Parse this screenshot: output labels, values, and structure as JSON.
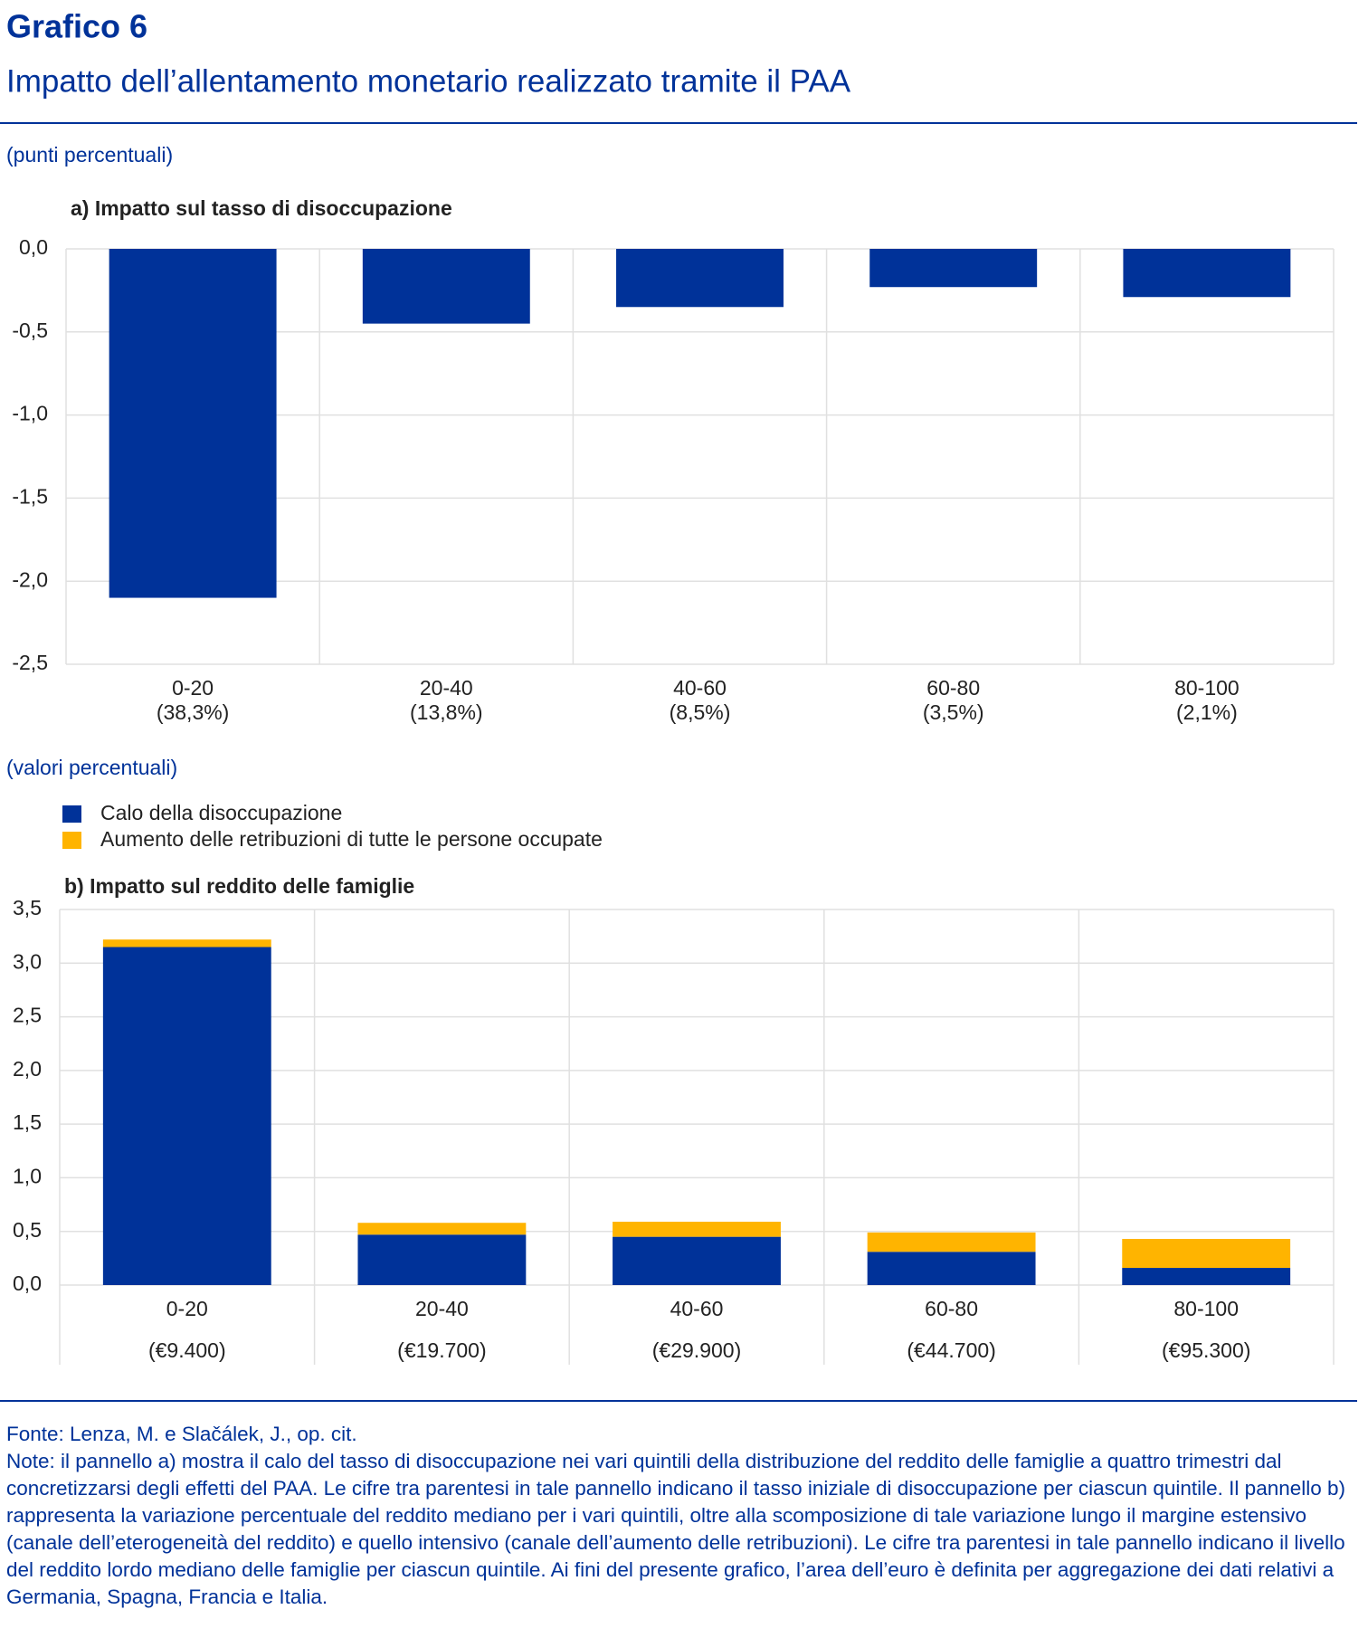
{
  "header": {
    "label": "Grafico 6",
    "title": "Impatto dell’allentamento monetario realizzato tramite il PAA"
  },
  "chart_data": [
    {
      "type": "bar",
      "unit": "(punti percentuali)",
      "title": "a) Impatto sul tasso di disoccupazione",
      "categories": [
        "0-20",
        "20-40",
        "40-60",
        "60-80",
        "80-100"
      ],
      "sublabels": [
        "(38,3%)",
        "(13,8%)",
        "(8,5%)",
        "(3,5%)",
        "(2,1%)"
      ],
      "values": [
        -2.1,
        -0.45,
        -0.35,
        -0.23,
        -0.29
      ],
      "color": "#003299",
      "ylim": [
        -2.5,
        0
      ],
      "yticks": [
        {
          "value": 0,
          "label": "0,0"
        },
        {
          "value": -0.5,
          "label": "-0,5"
        },
        {
          "value": -1,
          "label": "-1,0"
        },
        {
          "value": -1.5,
          "label": "-1,5"
        },
        {
          "value": -2,
          "label": "-2,0"
        },
        {
          "value": -2.5,
          "label": "-2,5"
        }
      ],
      "grid": true
    },
    {
      "type": "stacked_bar",
      "unit": "(valori percentuali)",
      "title": "b) Impatto sul reddito delle famiglie",
      "categories": [
        "0-20",
        "20-40",
        "40-60",
        "60-80",
        "80-100"
      ],
      "sublabels": [
        "(€9.400)",
        "(€19.700)",
        "(€29.900)",
        "(€44.700)",
        "(€95.300)"
      ],
      "series": [
        {
          "name": "Calo della disoccupazione",
          "color": "#003299",
          "values": [
            3.15,
            0.47,
            0.45,
            0.31,
            0.16
          ]
        },
        {
          "name": "Aumento delle retribuzioni di tutte le persone occupate",
          "color": "#ffb400",
          "values": [
            0.07,
            0.11,
            0.14,
            0.18,
            0.27
          ]
        }
      ],
      "ylim": [
        0,
        3.5
      ],
      "yticks": [
        {
          "value": 0,
          "label": "0,0"
        },
        {
          "value": 0.5,
          "label": "0,5"
        },
        {
          "value": 1,
          "label": "1,0"
        },
        {
          "value": 1.5,
          "label": "1,5"
        },
        {
          "value": 2,
          "label": "2,0"
        },
        {
          "value": 2.5,
          "label": "2,5"
        },
        {
          "value": 3,
          "label": "3,0"
        },
        {
          "value": 3.5,
          "label": "3,5"
        }
      ],
      "grid": true,
      "legend": "top-left"
    }
  ],
  "footer": {
    "source": "Fonte: Lenza, M. e Slačálek, J., op. cit.",
    "notes": "Note: il pannello a) mostra il calo del tasso di disoccupazione nei vari quintili della distribuzione del reddito delle famiglie a quattro trimestri dal concretizzarsi degli effetti del PAA. Le cifre tra parentesi in tale pannello indicano il tasso iniziale di disoccupazione per ciascun quintile. Il pannello b) rappresenta la variazione percentuale del reddito mediano per i vari quintili, oltre alla scomposizione di tale variazione lungo il margine estensivo (canale dell’eterogeneità del reddito) e quello intensivo (canale dell’aumento delle retribuzioni). Le cifre tra parentesi in tale pannello indicano il livello del reddito lordo mediano delle famiglie per ciascun quintile. Ai fini del presente grafico, l’area dell’euro è definita per aggregazione dei dati relativi a Germania, Spagna, Francia e Italia."
  }
}
